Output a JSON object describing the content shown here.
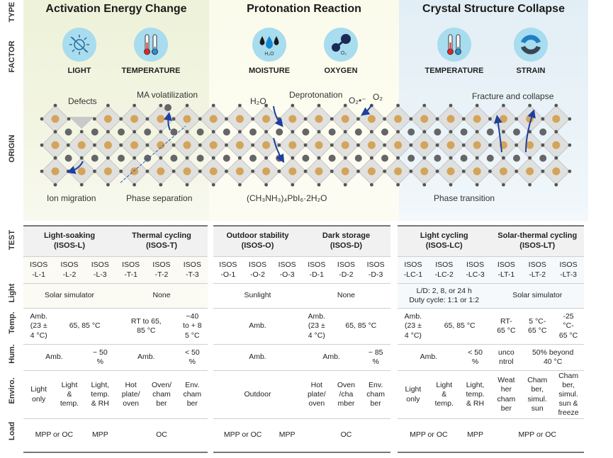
{
  "side_labels": {
    "type": "TYPE",
    "factor": "FACTOR",
    "origin": "ORIGIN",
    "test": "TEST",
    "light": "Light",
    "temp": "Temp.",
    "hum": "Hum.",
    "enviro": "Enviro.",
    "load": "Load"
  },
  "panels": [
    {
      "title": "Activation Energy Change",
      "color": "#eef2d9",
      "factors": [
        {
          "label": "LIGHT",
          "icon": "light-off-icon"
        },
        {
          "label": "TEMPERATURE",
          "icon": "thermometer-icon"
        }
      ]
    },
    {
      "title": "Protonation Reaction",
      "color": "#fbfbec",
      "factors": [
        {
          "label": "MOISTURE",
          "icon": "water-drops-icon",
          "sub": "H₂O"
        },
        {
          "label": "OXYGEN",
          "icon": "oxygen-molecule-icon",
          "sub": "O₂"
        }
      ]
    },
    {
      "title": "Crystal Structure Collapse",
      "color": "#e2eef5",
      "factors": [
        {
          "label": "TEMPERATURE",
          "icon": "thermometer-icon"
        },
        {
          "label": "STRAIN",
          "icon": "strain-icon"
        }
      ]
    }
  ],
  "origin_labels": {
    "defects": "Defects",
    "ma": "MA volatilization",
    "ion": "Ion migration",
    "phase_sep": "Phase separation",
    "h2o": "H₂O",
    "deprot": "Deprotonation",
    "o2rad": "O₂•⁻",
    "o2": "O₂",
    "hydrate": "(CH₃NH₃)₄PbI₆·2H₂O",
    "fracture": "Fracture and collapse",
    "phase_tr": "Phase transition"
  },
  "tables": [
    {
      "groups": [
        {
          "text": "Light-soaking\n(ISOS-L)",
          "span": 3
        },
        {
          "text": "Thermal cycling\n(ISOS-T)",
          "span": 3
        }
      ],
      "codes": [
        "ISOS\n-L-1",
        "ISOS\n-L-2",
        "ISOS\n-L-3",
        "ISOS\n-T-1",
        "ISOS\n-T-2",
        "ISOS\n-T-3"
      ],
      "rows": [
        [
          {
            "text": "Solar simulator",
            "span": 3
          },
          {
            "text": "None",
            "span": 3
          }
        ],
        [
          {
            "text": "Amb.\n(23 ±\n4 °C)",
            "span": 1
          },
          {
            "text": "65, 85 °C",
            "span": 2
          },
          {
            "text": "RT to 65,\n85 °C",
            "span": 2
          },
          {
            "text": "−40\nto + 8\n5 °C",
            "span": 1
          }
        ],
        [
          {
            "text": "Amb.",
            "span": 2
          },
          {
            "text": "~ 50\n%",
            "span": 1
          },
          {
            "text": "Amb.",
            "span": 2
          },
          {
            "text": "< 50\n%",
            "span": 1
          }
        ],
        [
          {
            "text": "Light\nonly",
            "span": 1
          },
          {
            "text": "Light\n&\ntemp.",
            "span": 1
          },
          {
            "text": "Light,\ntemp.\n& RH",
            "span": 1
          },
          {
            "text": "Hot\nplate/\noven",
            "span": 1
          },
          {
            "text": "Oven/\ncham\nber",
            "span": 1
          },
          {
            "text": "Env.\ncham\nber",
            "span": 1
          }
        ],
        [
          {
            "text": "MPP or OC",
            "span": 2
          },
          {
            "text": "MPP",
            "span": 1
          },
          {
            "text": "OC",
            "span": 3
          }
        ]
      ]
    },
    {
      "groups": [
        {
          "text": "Outdoor stability\n(ISOS-O)",
          "span": 3
        },
        {
          "text": "Dark storage\n(ISOS-D)",
          "span": 3
        }
      ],
      "codes": [
        "ISOS\n-O-1",
        "ISOS\n-O-2",
        "ISOS\n-O-3",
        "ISOS\n-D-1",
        "ISOS\n-D-2",
        "ISOS\n-D-3"
      ],
      "rows": [
        [
          {
            "text": "Sunlight",
            "span": 3
          },
          {
            "text": "None",
            "span": 3
          }
        ],
        [
          {
            "text": "Amb.",
            "span": 3
          },
          {
            "text": "Amb.\n(23 ±\n4 °C)",
            "span": 1
          },
          {
            "text": "65, 85 °C",
            "span": 2
          }
        ],
        [
          {
            "text": "Amb.",
            "span": 3
          },
          {
            "text": "Amb.",
            "span": 2
          },
          {
            "text": "~ 85\n%",
            "span": 1
          }
        ],
        [
          {
            "text": "Outdoor",
            "span": 3
          },
          {
            "text": "Hot\nplate/\noven",
            "span": 1
          },
          {
            "text": "Oven\n/cha\nmber",
            "span": 1
          },
          {
            "text": "Env.\ncham\nber",
            "span": 1
          }
        ],
        [
          {
            "text": "MPP or OC",
            "span": 2
          },
          {
            "text": "MPP",
            "span": 1
          },
          {
            "text": "OC",
            "span": 3
          }
        ]
      ]
    },
    {
      "groups": [
        {
          "text": "Light cycling\n(ISOS-LC)",
          "span": 3
        },
        {
          "text": "Solar-thermal cycling\n(ISOS-LT)",
          "span": 3
        }
      ],
      "codes": [
        "ISOS\n-LC-1",
        "ISOS\n-LC-2",
        "ISOS\n-LC-3",
        "ISOS\n-LT-1",
        "ISOS\n-LT-2",
        "ISOS\n-LT-3"
      ],
      "rows": [
        [
          {
            "text": "L/D: 2, 8, or 24 h\nDuty cycle: 1:1 or 1:2",
            "span": 3
          },
          {
            "text": "Solar simulator",
            "span": 3
          }
        ],
        [
          {
            "text": "Amb.\n(23 ±\n4 °C)",
            "span": 1
          },
          {
            "text": "65, 85 °C",
            "span": 2
          },
          {
            "text": "RT-\n65 °C",
            "span": 1
          },
          {
            "text": "5 °C-\n65 °C",
            "span": 1
          },
          {
            "text": "-25\n°C-\n65 °C",
            "span": 1
          }
        ],
        [
          {
            "text": "Amb.",
            "span": 2
          },
          {
            "text": "< 50\n%",
            "span": 1
          },
          {
            "text": "unco\nntrol",
            "span": 1
          },
          {
            "text": "50% beyond\n40 °C",
            "span": 2
          }
        ],
        [
          {
            "text": "Light\nonly",
            "span": 1
          },
          {
            "text": "Light\n&\ntemp.",
            "span": 1
          },
          {
            "text": "Light,\ntemp.\n& RH",
            "span": 1
          },
          {
            "text": "Weat\nher\ncham\nber",
            "span": 1
          },
          {
            "text": "Cham\nber,\nsimul.\nsun",
            "span": 1
          },
          {
            "text": "Cham\nber,\nsimul.\nsun &\nfreeze",
            "span": 1
          }
        ],
        [
          {
            "text": "MPP or OC",
            "span": 2
          },
          {
            "text": "MPP",
            "span": 1
          },
          {
            "text": "MPP or OC",
            "span": 3
          }
        ]
      ]
    }
  ]
}
